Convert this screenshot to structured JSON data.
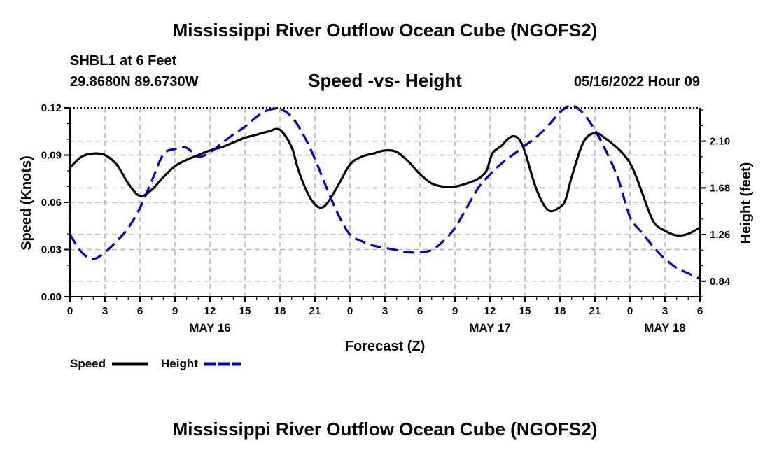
{
  "header": {
    "title": "Mississippi River Outflow Ocean Cube (NGOFS2)",
    "station": "SHBL1 at 6 Feet",
    "coordinates": "29.8680N  89.6730W",
    "subtitle": "Speed -vs- Height",
    "datestamp": "05/16/2022 Hour 09"
  },
  "footer": {
    "title": "Mississippi River Outflow Ocean Cube (NGOFS2)"
  },
  "chart_data": {
    "type": "line",
    "xlabel": "Forecast (Z)",
    "ylabel": "Speed (Knots)",
    "y2label": "Height (feet)",
    "x_range": [
      0,
      54
    ],
    "x_ticks": [
      0,
      3,
      6,
      9,
      12,
      15,
      18,
      21,
      24,
      27,
      30,
      33,
      36,
      39,
      42,
      45,
      48,
      51,
      54
    ],
    "x_tick_labels": [
      "0",
      "3",
      "6",
      "9",
      "12",
      "15",
      "18",
      "21",
      "0",
      "3",
      "6",
      "9",
      "12",
      "15",
      "18",
      "21",
      "0",
      "3",
      "6"
    ],
    "date_labels": [
      {
        "label": "MAY 16",
        "x": 12
      },
      {
        "label": "MAY 17",
        "x": 36
      },
      {
        "label": "MAY 18",
        "x": 51
      }
    ],
    "ylim": [
      0,
      0.12
    ],
    "y_ticks": [
      0.0,
      0.03,
      0.06,
      0.09,
      0.12
    ],
    "y_tick_labels": [
      "0.00",
      "0.03",
      "0.06",
      "0.09",
      "0.12"
    ],
    "y2lim": [
      0.7,
      2.4
    ],
    "y2_ticks": [
      0.84,
      1.26,
      1.68,
      2.1
    ],
    "y2_tick_labels": [
      "0.84",
      "1.26",
      "1.68",
      "2.10"
    ],
    "grid": true,
    "colors": {
      "speed": "#000000",
      "height": "#0000cc",
      "grid": "#b4b4b4"
    },
    "legend": [
      {
        "name": "Speed",
        "style": "solid",
        "color": "#000000"
      },
      {
        "name": "Height",
        "style": "dashed",
        "color": "#0000cc"
      }
    ],
    "series": [
      {
        "name": "Speed",
        "axis": "left",
        "x": [
          0,
          1,
          2,
          3,
          4,
          5,
          6,
          7,
          8,
          9,
          10,
          11,
          12,
          13,
          14,
          15,
          16,
          17,
          18,
          19,
          19.6,
          20.5,
          21.3,
          22,
          23,
          24,
          25,
          26,
          27,
          28,
          29,
          30,
          31,
          32,
          33,
          34,
          35,
          35.7,
          36,
          36.3,
          37,
          37.5,
          38,
          38.5,
          39,
          40,
          41,
          42,
          42.5,
          43,
          44,
          45,
          46,
          47,
          47.5,
          48,
          48.5,
          49,
          50,
          51,
          52,
          53,
          54
        ],
        "values": [
          0.082,
          0.089,
          0.091,
          0.09,
          0.084,
          0.072,
          0.064,
          0.068,
          0.076,
          0.083,
          0.087,
          0.09,
          0.093,
          0.095,
          0.098,
          0.101,
          0.103,
          0.105,
          0.106,
          0.095,
          0.08,
          0.064,
          0.057,
          0.059,
          0.071,
          0.084,
          0.089,
          0.091,
          0.093,
          0.092,
          0.086,
          0.078,
          0.072,
          0.07,
          0.07,
          0.072,
          0.075,
          0.08,
          0.087,
          0.092,
          0.096,
          0.1,
          0.102,
          0.1,
          0.092,
          0.068,
          0.055,
          0.057,
          0.062,
          0.076,
          0.098,
          0.104,
          0.1,
          0.094,
          0.09,
          0.085,
          0.077,
          0.067,
          0.048,
          0.042,
          0.039,
          0.04,
          0.044
        ]
      },
      {
        "name": "Height",
        "axis": "right",
        "x": [
          0,
          1,
          2,
          3,
          4,
          5,
          6,
          7,
          8,
          9,
          10,
          11,
          12,
          13,
          14,
          15,
          16,
          17,
          18,
          19,
          20,
          21,
          22,
          23,
          24,
          25,
          26,
          27,
          28,
          29,
          30,
          31,
          32,
          33,
          34,
          35,
          36,
          37,
          38,
          39,
          40,
          41,
          42,
          43,
          44,
          45,
          46,
          47,
          48,
          49,
          50,
          51,
          52,
          53,
          54
        ],
        "values": [
          1.26,
          1.1,
          1.04,
          1.1,
          1.2,
          1.32,
          1.5,
          1.74,
          1.98,
          2.03,
          2.04,
          1.96,
          2.0,
          2.08,
          2.16,
          2.23,
          2.32,
          2.38,
          2.39,
          2.32,
          2.16,
          1.94,
          1.68,
          1.44,
          1.26,
          1.2,
          1.16,
          1.14,
          1.12,
          1.1,
          1.1,
          1.12,
          1.2,
          1.32,
          1.5,
          1.68,
          1.8,
          1.9,
          1.98,
          2.06,
          2.14,
          2.24,
          2.36,
          2.42,
          2.35,
          2.2,
          2.0,
          1.76,
          1.42,
          1.28,
          1.15,
          1.04,
          0.96,
          0.91,
          0.86
        ]
      }
    ]
  }
}
